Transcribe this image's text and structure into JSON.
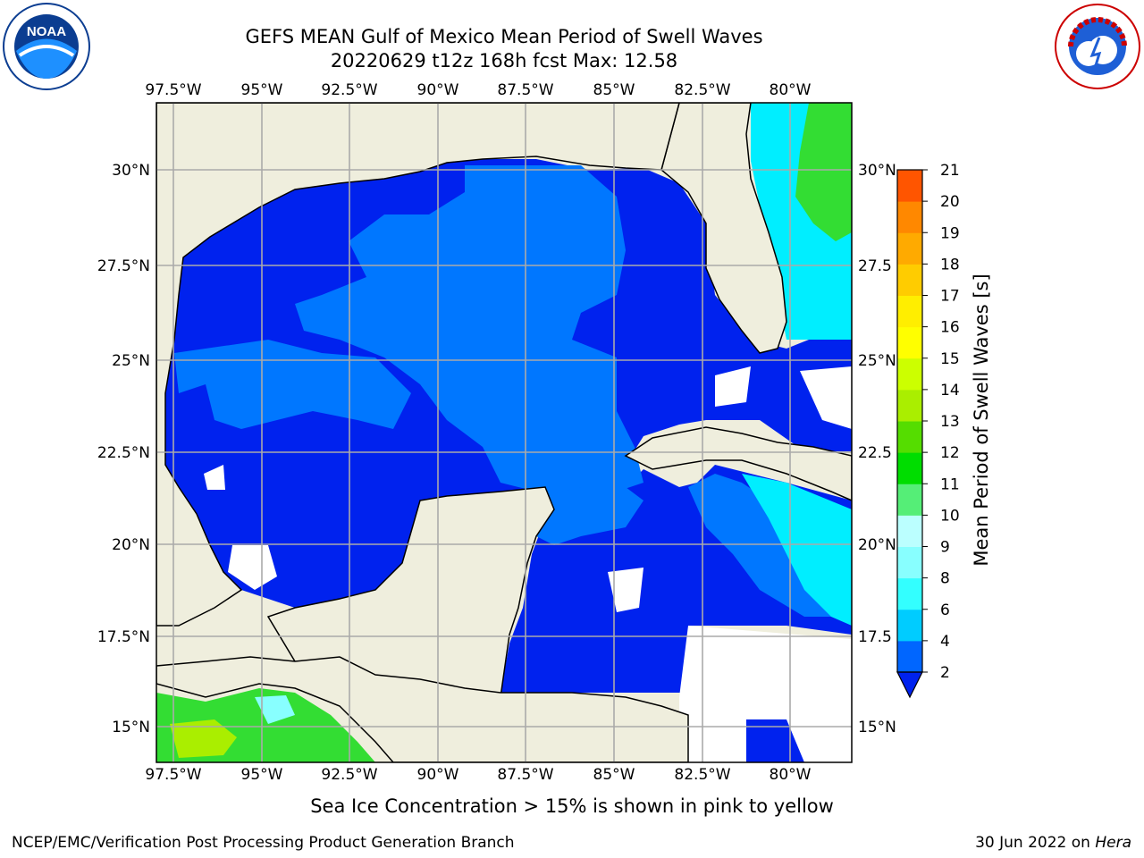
{
  "title_line1": "GEFS MEAN Gulf of Mexico Mean Period of Swell Waves",
  "title_line2": "20220629 t12z 168h fcst   Max: 12.58",
  "lon_labels": [
    "97.5°W",
    "95°W",
    "92.5°W",
    "90°W",
    "87.5°W",
    "85°W",
    "82.5°W",
    "80°W"
  ],
  "lat_labels_left": [
    "30°N",
    "27.5°N",
    "25°N",
    "22.5°N",
    "20°N",
    "17.5°N",
    "15°N"
  ],
  "lat_labels_right": [
    "30°N",
    "27.5",
    "25°N",
    "22.5",
    "20°N",
    "17.5",
    "15°N"
  ],
  "colorbar": {
    "label": "Mean Period of Swell Waves [s]",
    "ticks": [
      "2",
      "4",
      "6",
      "8",
      "9",
      "10",
      "11",
      "12",
      "13",
      "14",
      "15",
      "16",
      "17",
      "18",
      "19",
      "20",
      "21"
    ],
    "colors": [
      "#0066ff",
      "#00ccff",
      "#33ffff",
      "#88ffff",
      "#bbffff",
      "#55ee77",
      "#00dd00",
      "#55dd00",
      "#aaee00",
      "#ccff00",
      "#ffff00",
      "#ffee00",
      "#ffcc00",
      "#ffaa00",
      "#ff8800",
      "#ff5500",
      "#ff2200",
      "#ff0000"
    ]
  },
  "footer_note": "Sea Ice Concentration > 15% is shown in pink to yellow",
  "credit": "NCEP/EMC/Verification Post Processing Product Generation Branch",
  "date_text": "30 Jun 2022 on ",
  "date_host": "Hera",
  "logo_noaa_text": "NOAA",
  "logo_noaa_ring": "NATIONAL OCEANIC AND ATMOSPHERIC ADMINISTRATION · U.S. DEPARTMENT OF COMMERCE",
  "logo_nws_ring": "NATIONAL WEATHER SERVICE",
  "colors": {
    "land": "#efeedd",
    "ocean_dark": "#0022ee",
    "ocean_mid": "#0077ff",
    "cyan": "#00eeff",
    "green": "#33dd33",
    "yellowgreen": "#aaee00",
    "grid": "#aaaaaa"
  }
}
